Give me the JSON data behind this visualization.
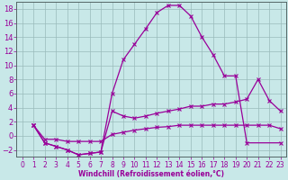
{
  "xlabel": "Windchill (Refroidissement éolien,°C)",
  "bg_color": "#c8e8e8",
  "line_color": "#990099",
  "grid_color": "#99bbbb",
  "xlim": [
    -0.5,
    23.5
  ],
  "ylim": [
    -3,
    19
  ],
  "xticks": [
    0,
    1,
    2,
    3,
    4,
    5,
    6,
    7,
    8,
    9,
    10,
    11,
    12,
    13,
    14,
    15,
    16,
    17,
    18,
    19,
    20,
    21,
    22,
    23
  ],
  "yticks": [
    -2,
    0,
    2,
    4,
    6,
    8,
    10,
    12,
    14,
    16,
    18
  ],
  "line1_x": [
    1,
    2,
    3,
    4,
    5,
    6,
    7,
    8,
    9,
    10,
    11,
    12,
    13,
    14,
    15,
    16,
    17,
    18,
    19,
    20,
    23
  ],
  "line1_y": [
    1.5,
    -1.0,
    -1.5,
    -2.0,
    -2.7,
    -2.5,
    -2.3,
    6.0,
    10.8,
    13.0,
    15.2,
    17.5,
    18.5,
    18.5,
    17.0,
    14.0,
    11.5,
    8.5,
    8.5,
    -1.0,
    -1.0
  ],
  "line2_x": [
    1,
    2,
    3,
    4,
    5,
    6,
    7,
    8,
    9,
    10,
    11,
    12,
    13,
    14,
    15,
    16,
    17,
    18,
    19,
    20,
    21,
    22,
    23
  ],
  "line2_y": [
    1.5,
    -1.0,
    -1.5,
    -2.0,
    -2.7,
    -2.5,
    -2.3,
    3.5,
    2.8,
    2.5,
    2.8,
    3.2,
    3.5,
    3.8,
    4.2,
    4.2,
    4.5,
    4.5,
    4.8,
    5.2,
    8.0,
    5.0,
    3.5
  ],
  "line3_x": [
    1,
    2,
    3,
    4,
    5,
    6,
    7,
    8,
    9,
    10,
    11,
    12,
    13,
    14,
    15,
    16,
    17,
    18,
    19,
    20,
    21,
    22,
    23
  ],
  "line3_y": [
    1.5,
    -0.5,
    -0.5,
    -0.8,
    -0.8,
    -0.8,
    -0.8,
    0.2,
    0.5,
    0.8,
    1.0,
    1.2,
    1.3,
    1.5,
    1.5,
    1.5,
    1.5,
    1.5,
    1.5,
    1.5,
    1.5,
    1.5,
    1.0
  ],
  "markersize": 2.5,
  "linewidth": 0.9,
  "xlabel_fontsize": 5.5,
  "tick_fontsize": 5.5
}
